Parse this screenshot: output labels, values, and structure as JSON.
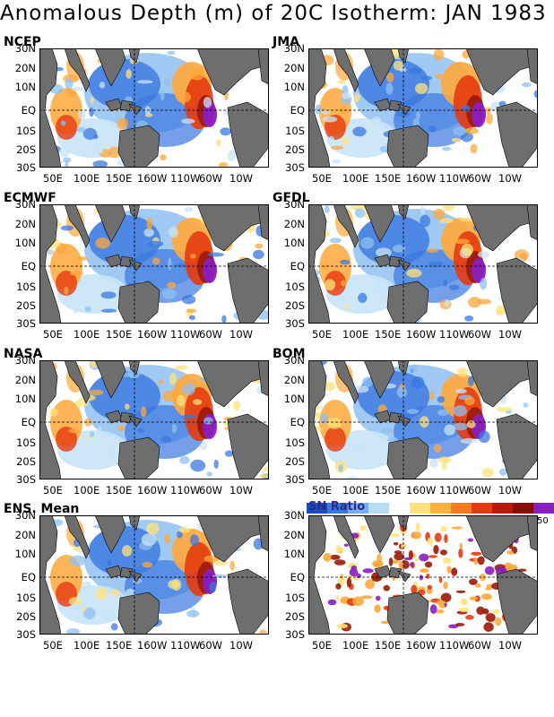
{
  "title": "Anomalous Depth (m) of 20C Isotherm: JAN 1983",
  "lat_labels": [
    "30N",
    "20N",
    "10N",
    "EQ",
    "10S",
    "20S",
    "30S"
  ],
  "lon_labels": [
    "50E",
    "100E",
    "150E",
    "160W",
    "110W",
    "60W",
    "10W"
  ],
  "panels": [
    {
      "name": "NCEP",
      "col": 0,
      "row": 0
    },
    {
      "name": "JMA",
      "col": 1,
      "row": 0
    },
    {
      "name": "ECMWF",
      "col": 0,
      "row": 1
    },
    {
      "name": "GFDL",
      "col": 1,
      "row": 1
    },
    {
      "name": "NASA",
      "col": 0,
      "row": 2
    },
    {
      "name": "BOM",
      "col": 1,
      "row": 2
    },
    {
      "name": "ENS. Mean",
      "col": 0,
      "row": 3
    },
    {
      "name": "",
      "col": 1,
      "row": 3
    }
  ],
  "colorbar": {
    "label": "SN Ratio",
    "end_value": "50",
    "colors": [
      "#1a4fc4",
      "#3a78e0",
      "#77aef0",
      "#b7dcf6",
      "#ffffff",
      "#ffe37a",
      "#ffb33a",
      "#ff7a18",
      "#e63b10",
      "#b51a0a",
      "#8a0d05",
      "#8a1fc0"
    ]
  },
  "palette": {
    "land": "#6e6e6e",
    "strong_blue": "#3a78e0",
    "light_blue": "#8fc0f2",
    "pale_blue": "#c8e4f8",
    "yellow": "#ffe37a",
    "orange": "#ffa83a",
    "red": "#e63b10",
    "dark_red": "#9a1a0a",
    "purple": "#8a1fc0"
  }
}
